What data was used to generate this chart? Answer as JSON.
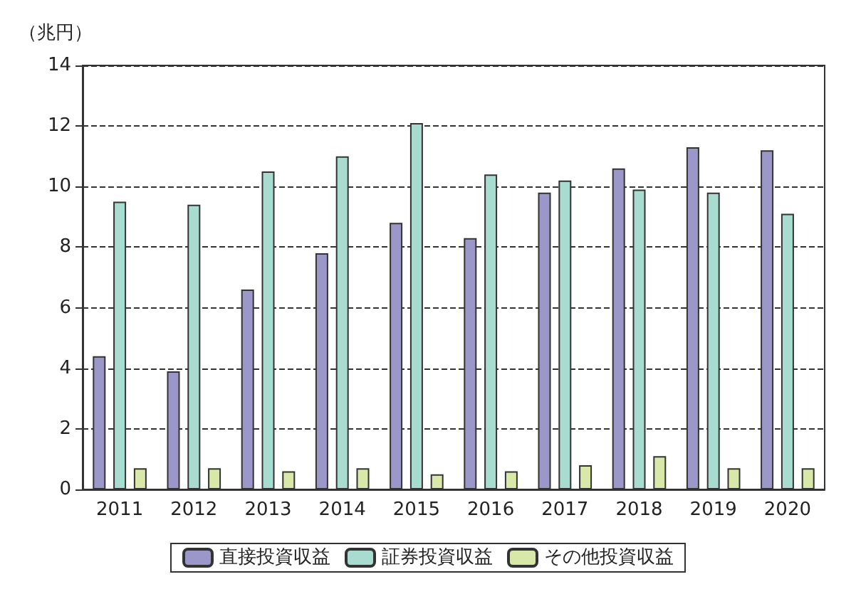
{
  "chart_data": {
    "type": "bar",
    "ylabel": "（兆円）",
    "categories": [
      "2011",
      "2012",
      "2013",
      "2014",
      "2015",
      "2016",
      "2017",
      "2018",
      "2019",
      "2020"
    ],
    "series": [
      {
        "name": "直接投資収益",
        "color": "#9b97c9",
        "values": [
          4.4,
          3.9,
          6.6,
          7.8,
          8.8,
          8.3,
          9.8,
          10.6,
          11.3,
          11.2
        ]
      },
      {
        "name": "証券投資収益",
        "color": "#a9dcd0",
        "values": [
          9.5,
          9.4,
          10.5,
          11.0,
          12.1,
          10.4,
          10.2,
          9.9,
          9.8,
          9.1
        ]
      },
      {
        "name": "その他投資収益",
        "color": "#d8e8a8",
        "values": [
          0.7,
          0.7,
          0.6,
          0.7,
          0.5,
          0.6,
          0.8,
          1.1,
          0.7,
          0.7
        ]
      }
    ],
    "ylim": [
      0,
      14
    ],
    "yticks": [
      0,
      2,
      4,
      6,
      8,
      10,
      12,
      14
    ],
    "grid": "y",
    "legend": "bottom"
  }
}
